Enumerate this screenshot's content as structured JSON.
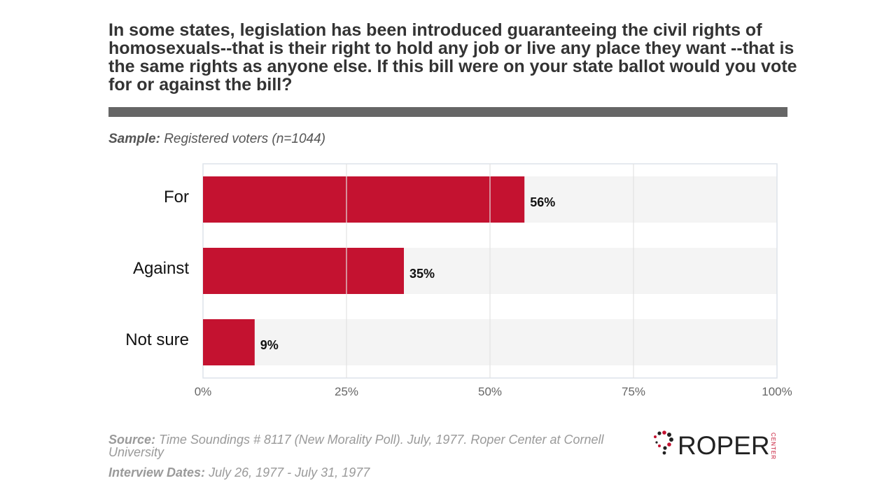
{
  "question": "In some states, legislation has been introduced guaranteeing the civil rights of homosexuals--that is their right to hold any job or live any place they want --that is the same rights as anyone else. If this bill were on your state ballot would you vote for or against the bill?",
  "sample": {
    "label": "Sample:",
    "text": "Registered voters (n=1044)"
  },
  "chart_data": {
    "type": "bar",
    "orientation": "horizontal",
    "categories": [
      "For",
      "Against",
      "Not sure"
    ],
    "values": [
      56,
      35,
      9
    ],
    "value_labels": [
      "56%",
      "35%",
      "9%"
    ],
    "xlim": [
      0,
      100
    ],
    "xticks": [
      0,
      25,
      50,
      75,
      100
    ],
    "xtick_labels": [
      "0%",
      "25%",
      "50%",
      "75%",
      "100%"
    ],
    "grid": true,
    "bar_color": "#c41230",
    "band_color": "#f4f4f4"
  },
  "footer": {
    "source_label": "Source:",
    "source_text": "Time Soundings # 8117 (New Morality Poll). July, 1977. Roper Center at Cornell University",
    "dates_label": "Interview Dates:",
    "dates_text": "July 26, 1977 - July 31, 1977"
  },
  "logo": {
    "text": "ROPER",
    "subtext": "CENTER"
  },
  "colors": {
    "title": "#333333",
    "rule": "#666666",
    "footer": "#9a9a9a",
    "accent": "#c41230"
  }
}
